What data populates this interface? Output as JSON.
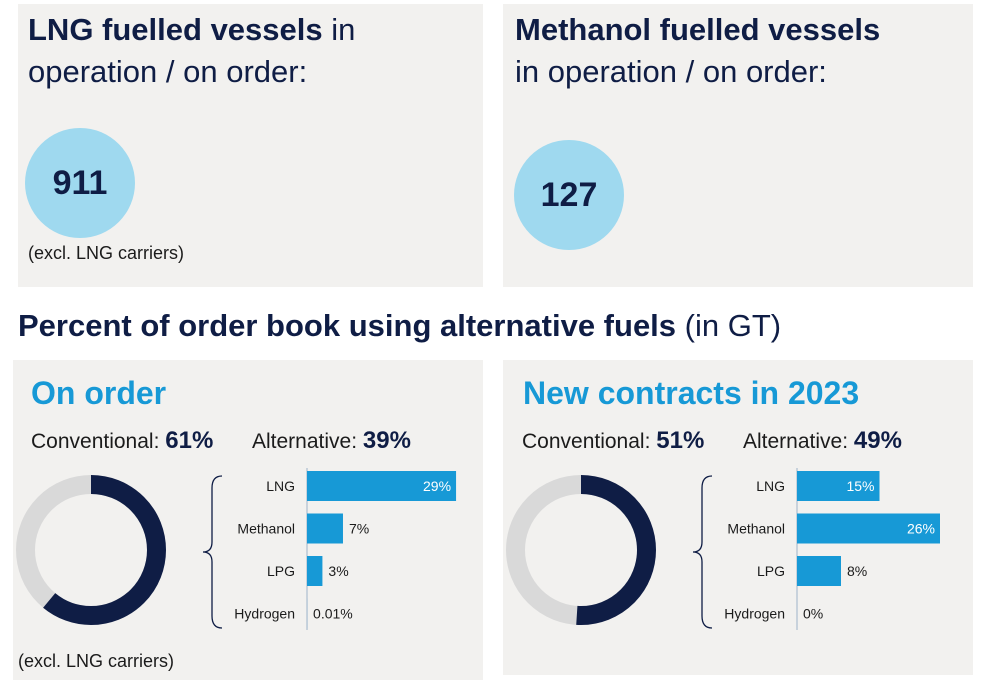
{
  "lng_panel": {
    "headline_bold": "LNG fuelled vessels",
    "headline_rest_1": " in",
    "headline_rest_2": "operation / on order:",
    "count": "911",
    "note": "(excl. LNG carriers)"
  },
  "methanol_panel": {
    "headline_bold": "Methanol fuelled vessels",
    "headline_rest": "in operation / on order:",
    "count": "127"
  },
  "section": {
    "title_bold": "Percent of order book using alternative fuels",
    "title_rest": " (in GT)"
  },
  "colors": {
    "dark_navy": "#0f1d45",
    "bar_blue": "#1799d6",
    "bubble_blue": "#9fd9ef",
    "donut_grey": "#d9d9d9",
    "panel_bg": "#f2f1ef"
  },
  "chart_data": [
    {
      "type": "bar",
      "title": "On order",
      "conventional_label": "Conventional:",
      "conventional_value": "61%",
      "alternative_label": "Alternative:",
      "alternative_value": "39%",
      "donut": {
        "conventional": 61,
        "alternative": 39
      },
      "categories": [
        "LNG",
        "Methanol",
        "LPG",
        "Hydrogen"
      ],
      "values": [
        29,
        7,
        3,
        0.01
      ],
      "value_labels": [
        "29%",
        "7%",
        "3%",
        "0.01%"
      ],
      "note": "(excl. LNG carriers)"
    },
    {
      "type": "bar",
      "title": "New contracts in 2023",
      "conventional_label": "Conventional:",
      "conventional_value": "51%",
      "alternative_label": "Alternative:",
      "alternative_value": "49%",
      "donut": {
        "conventional": 51,
        "alternative": 49
      },
      "categories": [
        "LNG",
        "Methanol",
        "LPG",
        "Hydrogen"
      ],
      "values": [
        15,
        26,
        8,
        0
      ],
      "value_labels": [
        "15%",
        "26%",
        "8%",
        "0%"
      ]
    }
  ]
}
